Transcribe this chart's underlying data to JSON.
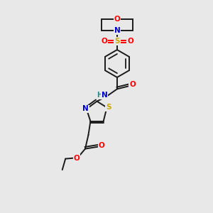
{
  "bg_color": "#e8e8e8",
  "bond_color": "#1a1a1a",
  "colors": {
    "O": "#ff0000",
    "N": "#0000cc",
    "S_sulfonyl": "#ccaa00",
    "S_thiazole": "#ccaa00",
    "C": "#1a1a1a",
    "H": "#2a8a8a"
  },
  "figsize": [
    3.0,
    3.0
  ],
  "dpi": 100
}
